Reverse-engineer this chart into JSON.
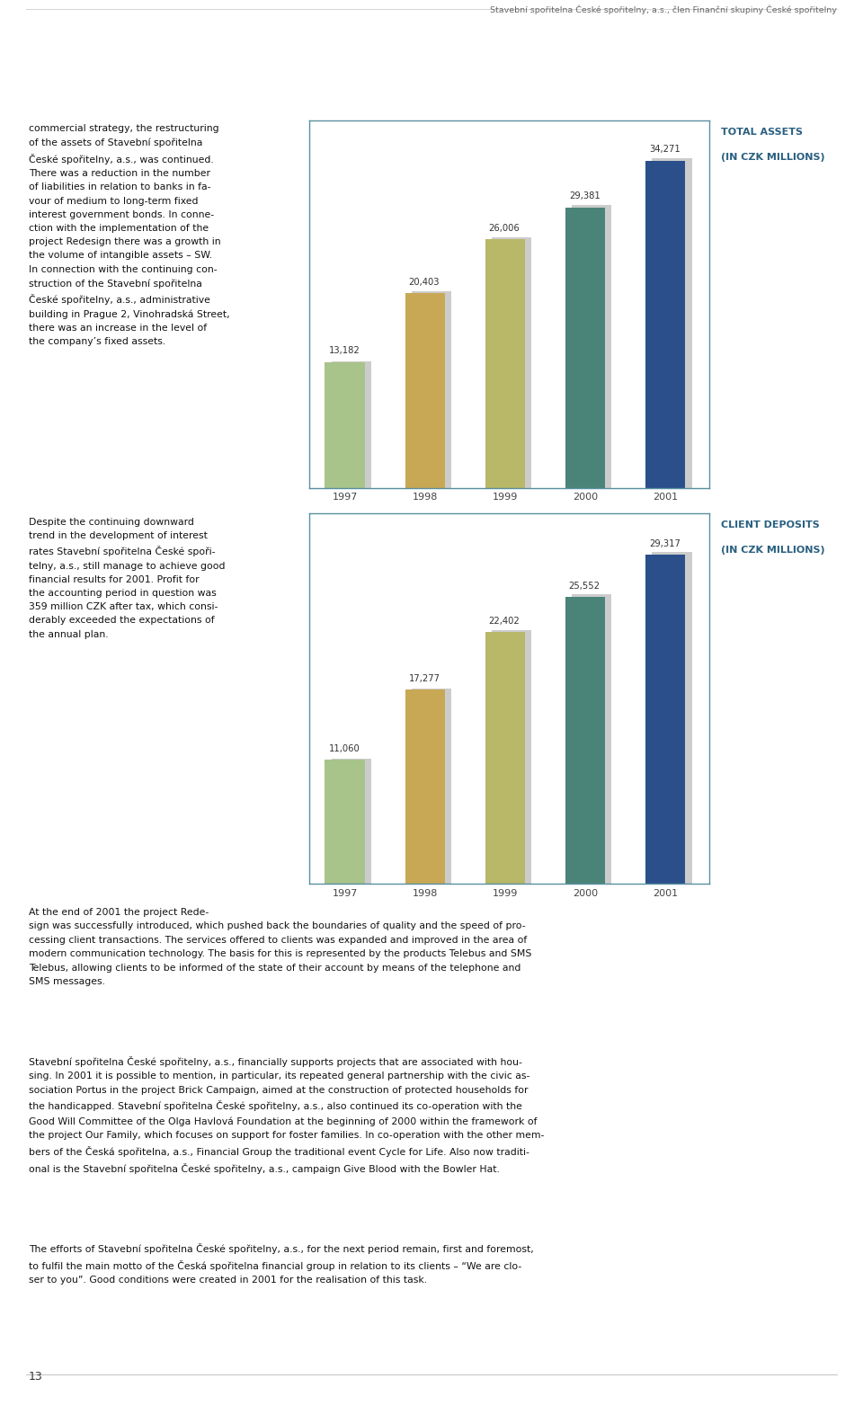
{
  "chart1": {
    "title_line1": "TOTAL ASSETS",
    "title_line2": "(IN CZK MILLIONS)",
    "years": [
      "1997",
      "1998",
      "1999",
      "2000",
      "2001"
    ],
    "values": [
      13182,
      20403,
      26006,
      29381,
      34271
    ],
    "bar_colors": [
      "#a8c48a",
      "#c8a855",
      "#b8b868",
      "#4a8478",
      "#2a4f8a"
    ],
    "shadow_color": "#cccccc"
  },
  "chart2": {
    "title_line1": "CLIENT DEPOSITS",
    "title_line2": "(IN CZK MILLIONS)",
    "years": [
      "1997",
      "1998",
      "1999",
      "2000",
      "2001"
    ],
    "values": [
      11060,
      17277,
      22402,
      25552,
      29317
    ],
    "bar_colors": [
      "#a8c48a",
      "#c8a855",
      "#b8b868",
      "#4a8478",
      "#2a4f8a"
    ],
    "shadow_color": "#cccccc"
  },
  "chart_border_color": "#5a8fa0",
  "background_color": "#ffffff",
  "title_color": "#2a6080",
  "header_text": "Stavební spořitelna České spořitelny, a.s., člen Finanční skupiny České spořitelny",
  "page_number": "13"
}
